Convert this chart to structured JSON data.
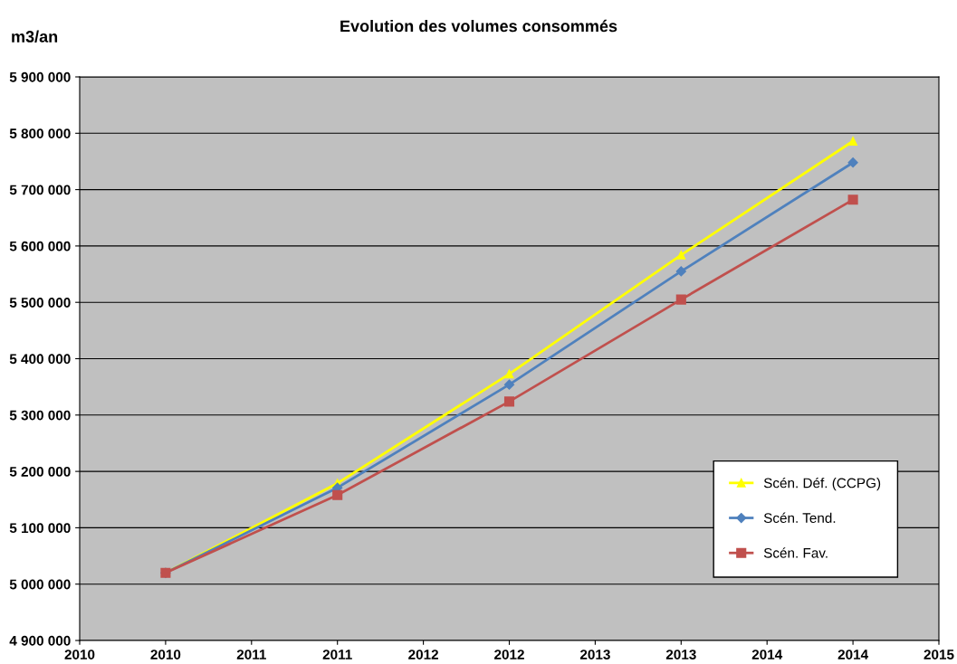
{
  "chart_data": {
    "type": "line",
    "title": "Evolution des volumes consommés",
    "ylabel": "m3/an",
    "x": [
      2010,
      2011,
      2012,
      2013,
      2014
    ],
    "series": [
      {
        "name": "Scén. Déf. (CCPG)",
        "color": "#ffff00",
        "marker": "triangle",
        "values": [
          5020000,
          5179000,
          5373000,
          5584000,
          5786000
        ]
      },
      {
        "name": "Scén. Tend.",
        "color": "#4f81bd",
        "marker": "diamond",
        "values": [
          5020000,
          5171000,
          5354000,
          5555000,
          5748000
        ]
      },
      {
        "name": "Scén. Fav.",
        "color": "#c0504d",
        "marker": "square",
        "values": [
          5020000,
          5158000,
          5324000,
          5505000,
          5682000
        ]
      }
    ],
    "xlim": [
      2009.5,
      2014.5
    ],
    "xticks": [
      {
        "value": 2009.5,
        "label": "2010"
      },
      {
        "value": 2010,
        "label": "2010"
      },
      {
        "value": 2010.5,
        "label": "2011"
      },
      {
        "value": 2011,
        "label": "2011"
      },
      {
        "value": 2011.5,
        "label": "2012"
      },
      {
        "value": 2012,
        "label": "2012"
      },
      {
        "value": 2012.5,
        "label": "2013"
      },
      {
        "value": 2013,
        "label": "2013"
      },
      {
        "value": 2013.5,
        "label": "2014"
      },
      {
        "value": 2014,
        "label": "2014"
      },
      {
        "value": 2014.5,
        "label": "2015"
      }
    ],
    "ylim": [
      4900000,
      5900000
    ],
    "yticks": [
      {
        "value": 4900000,
        "label": "4 900 000"
      },
      {
        "value": 5000000,
        "label": "5 000 000"
      },
      {
        "value": 5100000,
        "label": "5 100 000"
      },
      {
        "value": 5200000,
        "label": "5 200 000"
      },
      {
        "value": 5300000,
        "label": "5 300 000"
      },
      {
        "value": 5400000,
        "label": "5 400 000"
      },
      {
        "value": 5500000,
        "label": "5 500 000"
      },
      {
        "value": 5600000,
        "label": "5 600 000"
      },
      {
        "value": 5700000,
        "label": "5 700 000"
      },
      {
        "value": 5800000,
        "label": "5 800 000"
      },
      {
        "value": 5900000,
        "label": "5 900 000"
      }
    ],
    "grid": "y",
    "legend": "bottom right"
  }
}
